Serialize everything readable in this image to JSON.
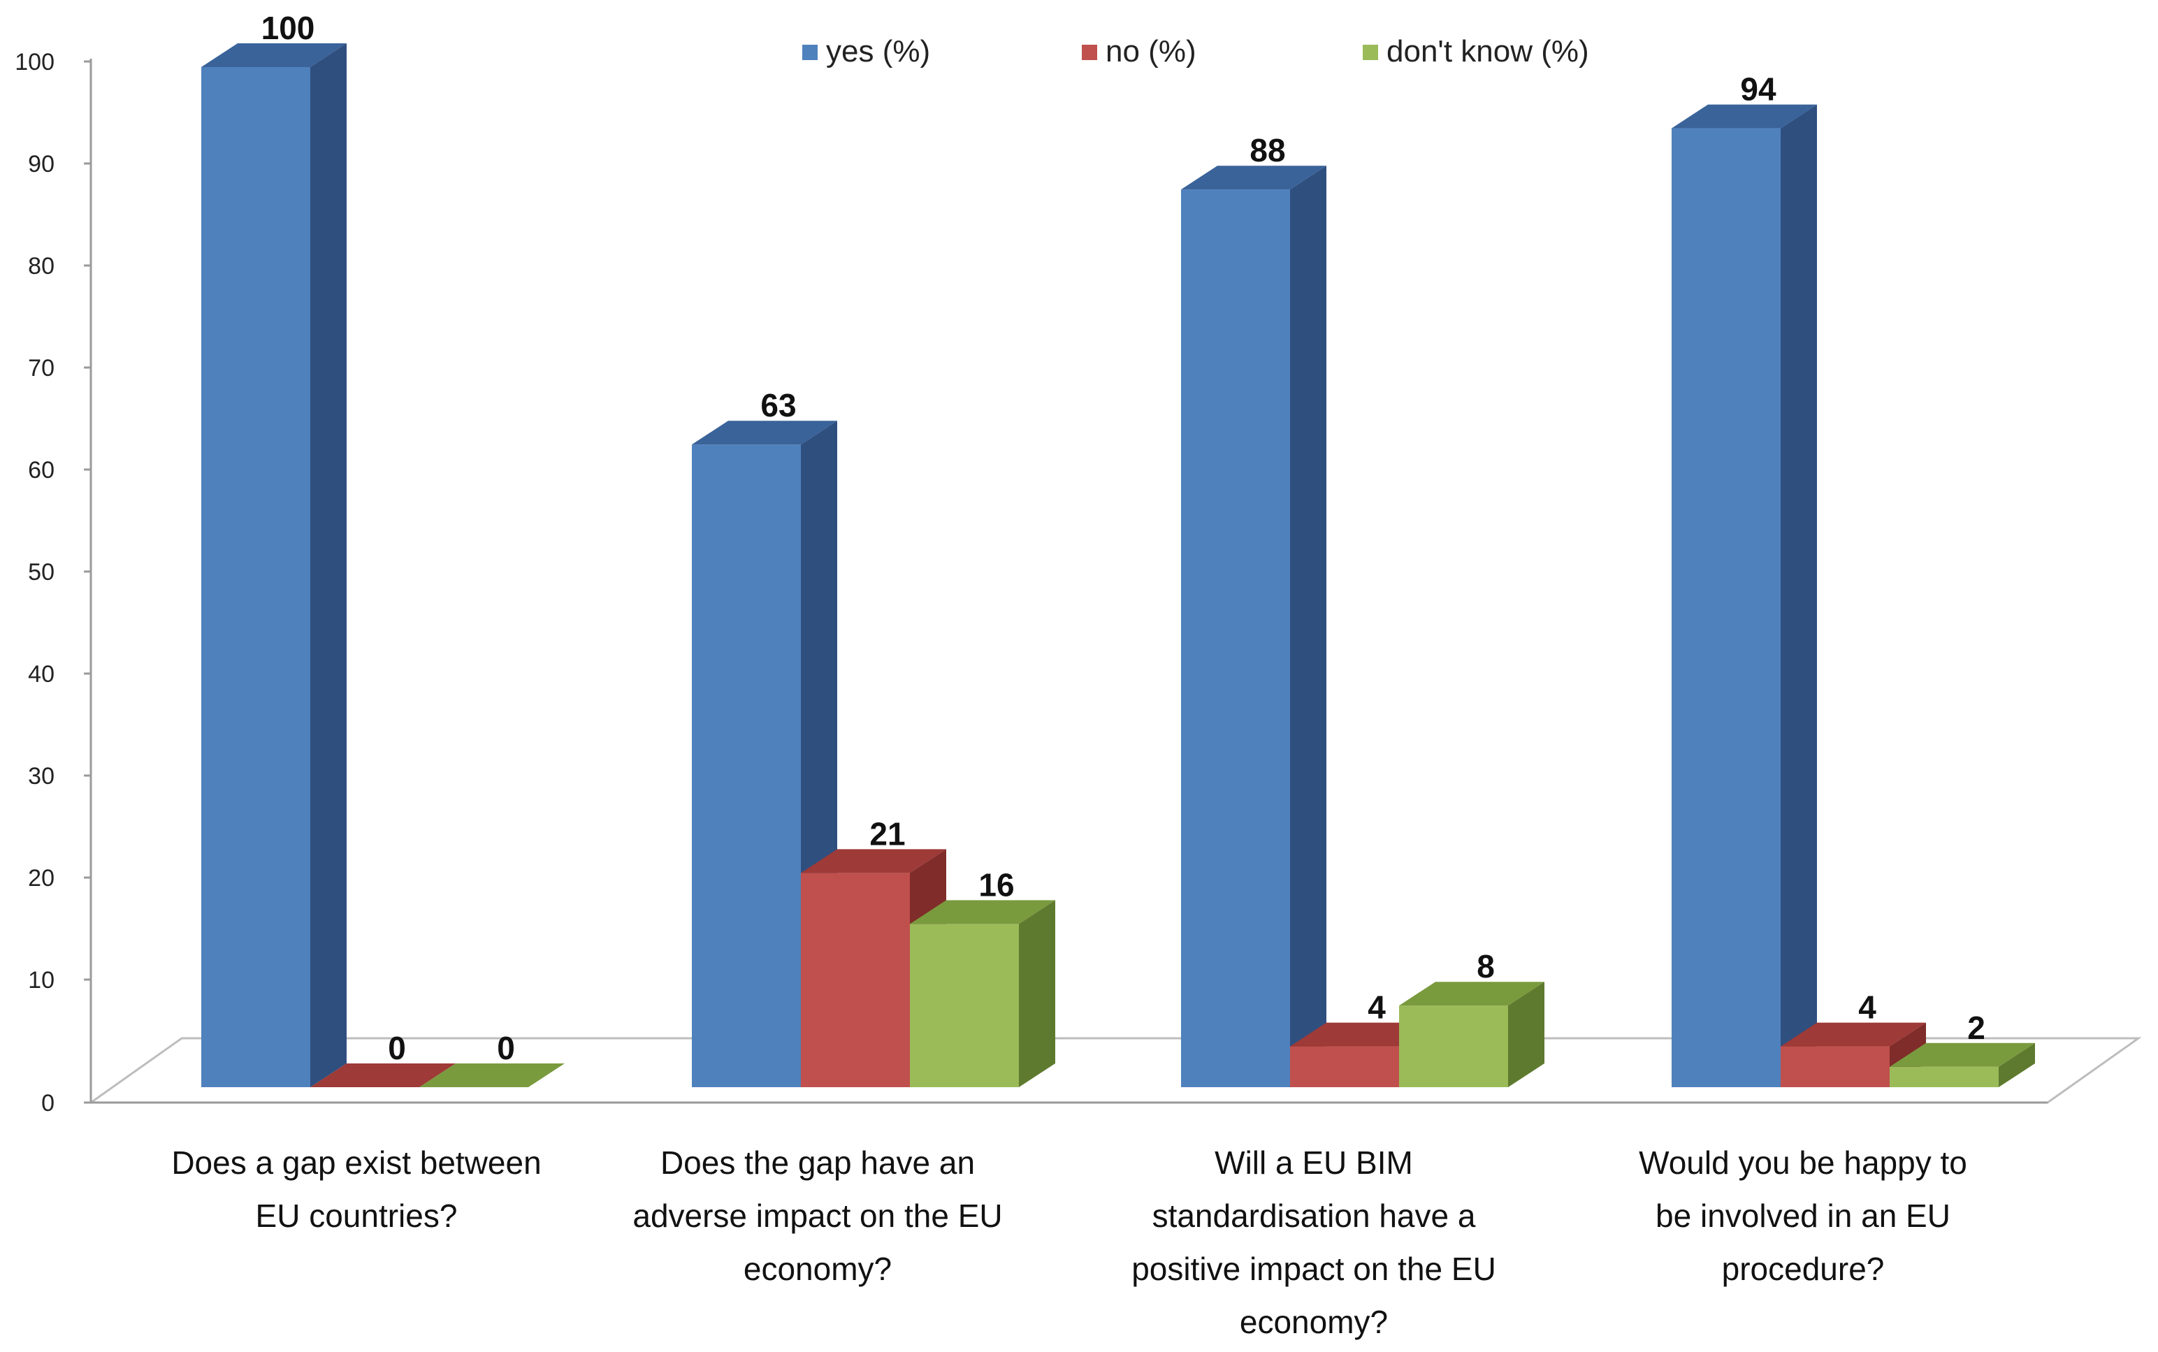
{
  "chart_data": {
    "type": "bar",
    "style": "3d-clustered-column",
    "categories": [
      [
        "Does a gap exist between",
        "EU countries?"
      ],
      [
        "Does the gap have an",
        "adverse impact on the EU",
        "economy?"
      ],
      [
        "Will a EU BIM",
        "standardisation have a",
        "positive impact on the EU",
        "economy?"
      ],
      [
        "Would you be happy to",
        "be involved in an EU",
        "procedure?"
      ]
    ],
    "series": [
      {
        "name": "yes (%)",
        "values": [
          100,
          63,
          88,
          94
        ],
        "color": "#4F81BD",
        "side": "#2F4F7F",
        "top": "#3A639A"
      },
      {
        "name": "no (%)",
        "values": [
          0,
          21,
          4,
          4
        ],
        "color": "#C0504D",
        "side": "#7F2C2A",
        "top": "#9E3A37"
      },
      {
        "name": "don't know (%)",
        "values": [
          0,
          16,
          8,
          2
        ],
        "color": "#9BBB59",
        "side": "#5E7A2E",
        "top": "#7A9A3E"
      }
    ],
    "y_ticks": [
      "0",
      "10",
      "20",
      "30",
      "40",
      "50",
      "60",
      "70",
      "80",
      "90",
      "100"
    ],
    "ylim": [
      0,
      100
    ],
    "legend_position": "top-center",
    "grid": false,
    "title": "",
    "xlabel": "",
    "ylabel": ""
  }
}
